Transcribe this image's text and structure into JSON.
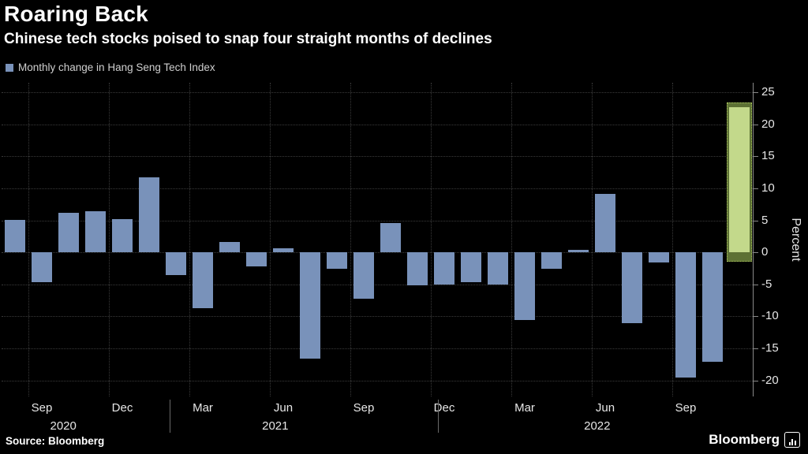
{
  "header": {
    "title": "Roaring Back",
    "subtitle": "Chinese tech stocks poised to snap four straight months of declines"
  },
  "legend": {
    "label": "Monthly change in Hang Seng Tech Index",
    "swatch_color": "#7992ba"
  },
  "chart_data": {
    "type": "bar",
    "title": "Roaring Back",
    "subtitle": "Chinese tech stocks poised to snap four straight months of declines",
    "series_name": "Monthly change in Hang Seng Tech Index",
    "ylabel": "Percent",
    "ylim": [
      -22.5,
      26.5
    ],
    "yticks": [
      25,
      20,
      15,
      10,
      5,
      0,
      -5,
      -10,
      -15,
      -20
    ],
    "grid": "dotted",
    "legend_position": "top-left",
    "bar_color": "#7992ba",
    "categories": [
      "Aug 2020",
      "Sep 2020",
      "Oct 2020",
      "Nov 2020",
      "Dec 2020",
      "Jan 2021",
      "Feb 2021",
      "Mar 2021",
      "Apr 2021",
      "May 2021",
      "Jun 2021",
      "Jul 2021",
      "Aug 2021",
      "Sep 2021",
      "Oct 2021",
      "Nov 2021",
      "Dec 2021",
      "Jan 2022",
      "Feb 2022",
      "Mar 2022",
      "Apr 2022",
      "May 2022",
      "Jun 2022",
      "Jul 2022",
      "Aug 2022",
      "Sep 2022",
      "Oct 2022",
      "Nov 2022"
    ],
    "values": [
      5.1,
      -4.6,
      6.2,
      6.4,
      5.2,
      11.7,
      -3.6,
      -8.7,
      1.6,
      -2.2,
      0.7,
      -16.6,
      -2.6,
      -7.2,
      4.6,
      -5.1,
      -5.0,
      -4.7,
      -5.0,
      -10.6,
      -2.6,
      0.4,
      9.2,
      -11.0,
      -1.6,
      -19.5,
      -17.1,
      23.2
    ],
    "highlight": {
      "index": 27,
      "box_top": 23.4,
      "box_bottom": -1.4,
      "bar_top": 22.7,
      "border_color": "#b3cf62",
      "fill_color": "#5d7134",
      "bar_color": "#c3d98b"
    },
    "xticks": [
      {
        "label": "Sep",
        "index": 1
      },
      {
        "label": "Dec",
        "index": 4
      },
      {
        "label": "Mar",
        "index": 7
      },
      {
        "label": "Jun",
        "index": 10
      },
      {
        "label": "Sep",
        "index": 13
      },
      {
        "label": "Dec",
        "index": 16
      },
      {
        "label": "Mar",
        "index": 19
      },
      {
        "label": "Jun",
        "index": 22
      },
      {
        "label": "Sep",
        "index": 25
      }
    ],
    "years": [
      {
        "label": "2020",
        "index": 1.8
      },
      {
        "label": "2021",
        "index": 9.7
      },
      {
        "label": "2022",
        "index": 21.7
      }
    ],
    "year_dividers": [
      6.25,
      16.25
    ]
  },
  "footer": {
    "source": "Source: Bloomberg",
    "brand": "Bloomberg"
  }
}
